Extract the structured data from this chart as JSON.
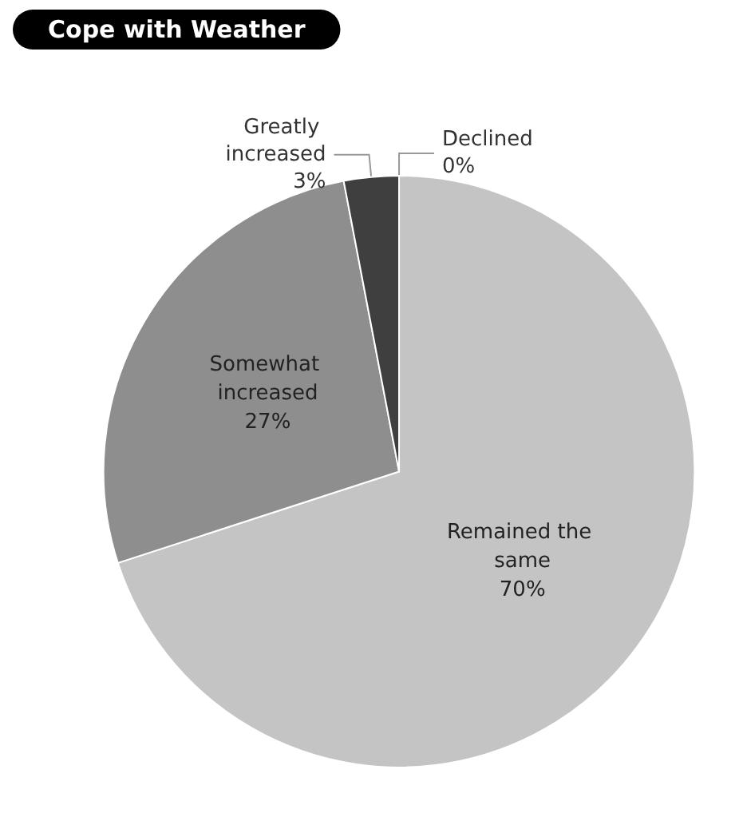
{
  "chart_data": {
    "type": "pie",
    "title": "Cope with Weather",
    "categories": [
      "Declined",
      "Remained the same",
      "Somewhat increased",
      "Greatly increased"
    ],
    "values": [
      0,
      70,
      27,
      3
    ],
    "value_labels": [
      "0%",
      "70%",
      "27%",
      "3%"
    ],
    "colors": [
      "#e8e8e8",
      "#c4c4c4",
      "#8e8e8e",
      "#3f3f3f"
    ]
  }
}
